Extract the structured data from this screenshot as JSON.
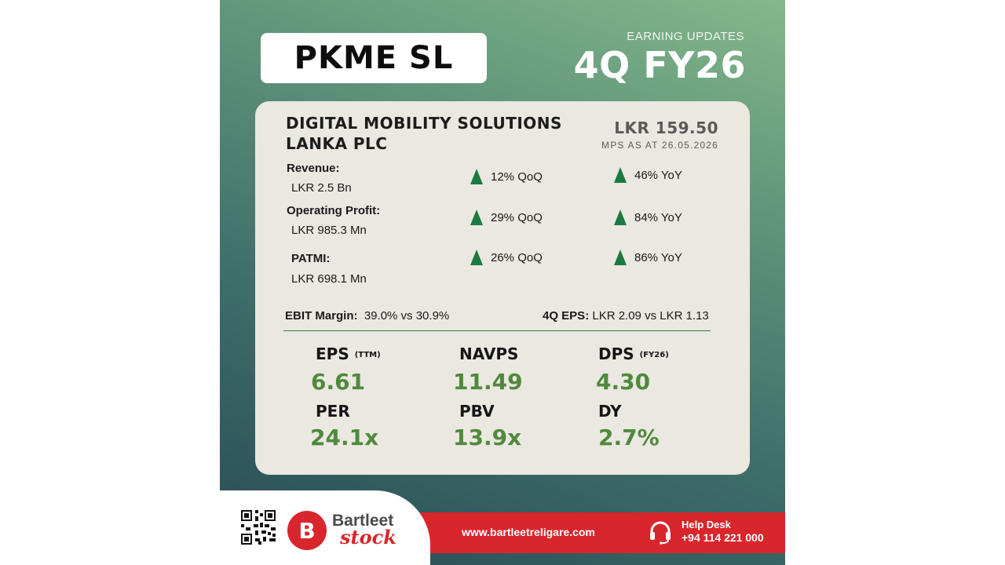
{
  "header": {
    "ticker": "PKME SL",
    "label": "EARNING UPDATES",
    "period": "4Q FY26"
  },
  "company": {
    "name_line1": "DIGITAL MOBILITY SOLUTIONS",
    "name_line2": "LANKA PLC",
    "price": "LKR 159.50",
    "price_note": "MPS AS AT 26.05.2026"
  },
  "metrics": [
    {
      "label": "Revenue:",
      "value": "LKR 2.5 Bn",
      "qoq": "12% QoQ",
      "yoy": "46% YoY"
    },
    {
      "label": "Operating Profit:",
      "value": "LKR 985.3 Mn",
      "qoq": "29% QoQ",
      "yoy": "84% YoY"
    },
    {
      "label": "PATMI:",
      "value": "LKR 698.1 Mn",
      "qoq": "26% QoQ",
      "yoy": "86% YoY"
    }
  ],
  "ratios": {
    "ebit_label": "EBIT Margin:",
    "ebit_value": "39.0% vs 30.9%",
    "eps_label": "4Q EPS:",
    "eps_value": "LKR 2.09 vs LKR 1.13"
  },
  "kpis": [
    {
      "label": "EPS",
      "sub": "(TTM)",
      "value": "6.61"
    },
    {
      "label": "NAVPS",
      "sub": "",
      "value": "11.49"
    },
    {
      "label": "DPS",
      "sub": "(FY26)",
      "value": "4.30"
    },
    {
      "label": "PER",
      "sub": "",
      "value": "24.1x"
    },
    {
      "label": "PBV",
      "sub": "",
      "value": "13.9x"
    },
    {
      "label": "DY",
      "sub": "",
      "value": "2.7%"
    }
  ],
  "footer": {
    "brand_top": "Bartleet",
    "brand_bottom": "stock",
    "website": "www.bartleetreligare.com",
    "help_label": "Help Desk",
    "help_phone": "+94 114 221 000"
  },
  "colors": {
    "accent_green": "#4f8a3c",
    "arrow_green": "#1a7a3f",
    "brand_red": "#d9262c",
    "card_bg": "#ebe8e1"
  },
  "icons": [
    "up-arrow-icon",
    "qr-code-icon",
    "bartleet-logo-icon",
    "headset-icon"
  ]
}
